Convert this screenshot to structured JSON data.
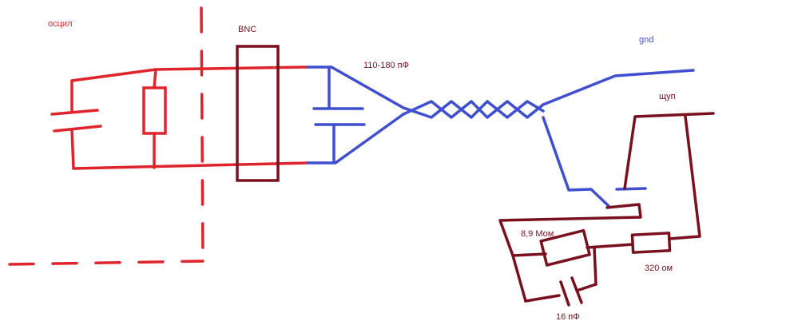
{
  "labels": {
    "oscil": "осцил",
    "bnc": "BNC",
    "cable_cap": "110-180 пФ",
    "gnd": "gnd",
    "probe": "щуп",
    "resistor_big": "8,9 Мом",
    "resistor_small": "320 ом",
    "cap_small": "16 пФ"
  },
  "colors": {
    "red": "#e0242c",
    "dark_red": "#7a0f1e",
    "blue": "#3f4fd0"
  }
}
